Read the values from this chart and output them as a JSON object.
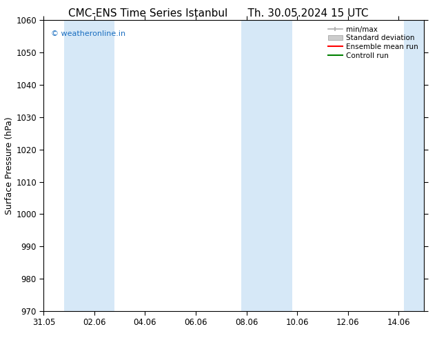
{
  "title_left": "CMC-ENS Time Series Istanbul",
  "title_right": "Th. 30.05.2024 15 UTC",
  "ylabel": "Surface Pressure (hPa)",
  "ylim": [
    970,
    1060
  ],
  "yticks": [
    970,
    980,
    990,
    1000,
    1010,
    1020,
    1030,
    1040,
    1050,
    1060
  ],
  "xlim_start": 0,
  "xlim_end": 15,
  "xtick_labels": [
    "31.05",
    "02.06",
    "04.06",
    "06.06",
    "08.06",
    "10.06",
    "12.06",
    "14.06"
  ],
  "xtick_positions": [
    0,
    2,
    4,
    6,
    8,
    10,
    12,
    14
  ],
  "shaded_bands": [
    {
      "x_start": 0.8,
      "x_end": 2.8
    },
    {
      "x_start": 7.8,
      "x_end": 9.8
    },
    {
      "x_start": 14.2,
      "x_end": 15.0
    }
  ],
  "shade_color": "#d6e8f7",
  "watermark_text": "© weatheronline.in",
  "watermark_color": "#1a6ec0",
  "legend_items": [
    {
      "label": "min/max",
      "color": "#aaaaaa",
      "lw": 1.2,
      "style": "minmax"
    },
    {
      "label": "Standard deviation",
      "color": "#cccccc",
      "lw": 5,
      "style": "bar"
    },
    {
      "label": "Ensemble mean run",
      "color": "#ff0000",
      "lw": 1.5,
      "style": "line"
    },
    {
      "label": "Controll run",
      "color": "#008000",
      "lw": 1.5,
      "style": "line"
    }
  ],
  "background_color": "#ffffff",
  "title_fontsize": 11,
  "axis_label_fontsize": 9,
  "tick_fontsize": 8.5,
  "watermark_fontsize": 8
}
